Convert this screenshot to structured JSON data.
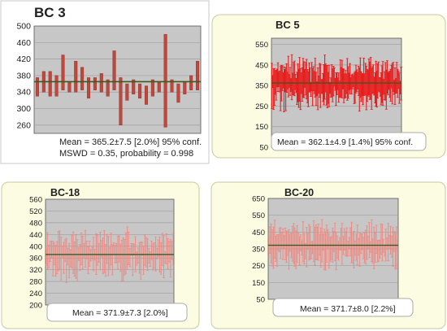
{
  "colors": {
    "panel_bg": "#fcfce2",
    "panel_border": "#c8c8a0",
    "plot_bg": "#c7c7c7",
    "grid": "#9e9e9e",
    "axis": "#555555",
    "bar_fill_dark": "#c0473c",
    "bar_fill_light": "#ee8a82",
    "bar_dense": "#e81c1c",
    "mean_line": "#3a5a1e",
    "text": "#222222"
  },
  "chart_data": [
    {
      "type": "bar",
      "title": "BC 3",
      "ylim": [
        240,
        500
      ],
      "yticks": [
        500,
        460,
        420,
        380,
        340,
        300,
        260
      ],
      "grid": true,
      "style": "error-bar",
      "mean": 365.2,
      "annotation_lines": [
        "Mean = 365.2±7.5 [2.0%] 95% conf.",
        "MSWD = 0.35, probability = 0.998"
      ],
      "intervals": [
        [
          330,
          375
        ],
        [
          340,
          390
        ],
        [
          330,
          390
        ],
        [
          330,
          380
        ],
        [
          345,
          430
        ],
        [
          340,
          365
        ],
        [
          340,
          415
        ],
        [
          345,
          400
        ],
        [
          325,
          375
        ],
        [
          345,
          375
        ],
        [
          340,
          385
        ],
        [
          330,
          370
        ],
        [
          345,
          440
        ],
        [
          260,
          375
        ],
        [
          320,
          360
        ],
        [
          335,
          370
        ],
        [
          325,
          360
        ],
        [
          310,
          355
        ],
        [
          330,
          370
        ],
        [
          340,
          365
        ],
        [
          255,
          480
        ],
        [
          340,
          370
        ],
        [
          315,
          360
        ],
        [
          335,
          365
        ],
        [
          345,
          380
        ],
        [
          345,
          415
        ]
      ]
    },
    {
      "type": "bar",
      "title": "BC 5",
      "ylim": [
        50,
        580
      ],
      "yticks": [
        550,
        450,
        350,
        250,
        150,
        50
      ],
      "grid": true,
      "style": "dense-error-bar",
      "mean": 362.1,
      "n": 150,
      "annotation_lines": [
        "Mean = 362.1±4.9 [1.4%] 95% conf."
      ]
    },
    {
      "type": "bar",
      "title": "BC-18",
      "ylim": [
        200,
        560
      ],
      "yticks": [
        560,
        520,
        480,
        440,
        400,
        360,
        320,
        280,
        240,
        200
      ],
      "grid": true,
      "style": "dense-error-bar",
      "mean": 371.9,
      "n": 95,
      "annotation_lines": [
        "Mean = 371.9±7.3 [2.0%]"
      ]
    },
    {
      "type": "bar",
      "title": "BC-20",
      "ylim": [
        50,
        650
      ],
      "yticks": [
        650,
        550,
        450,
        350,
        250,
        150,
        50
      ],
      "grid": true,
      "style": "dense-error-bar",
      "mean": 371.7,
      "n": 110,
      "annotation_lines": [
        "Mean = 371.7±8.0 [2.2%]"
      ]
    }
  ]
}
